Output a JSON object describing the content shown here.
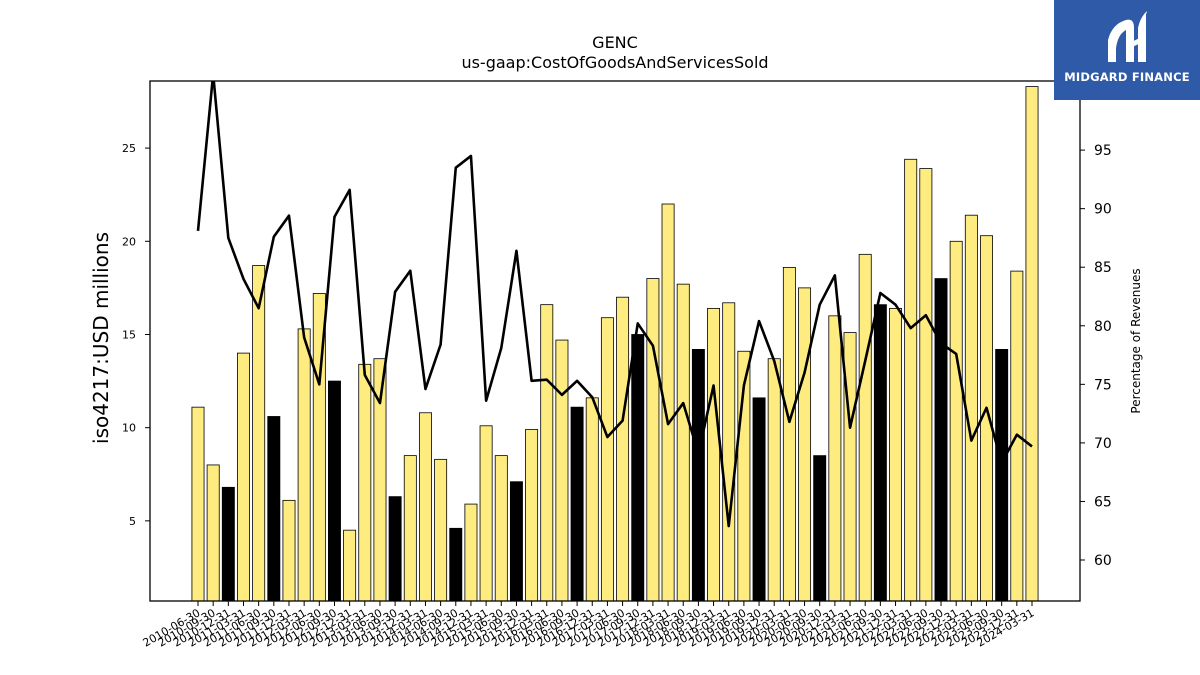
{
  "chart_data": {
    "type": "bar",
    "title": "GENC",
    "subtitle": "us-gaap:CostOfGoodsAndServicesSold",
    "ylabel": "iso4217:USD  millions",
    "y2label": "Percentage of Revenues",
    "ylim": [
      0.7,
      28.6
    ],
    "y2lim": [
      56.5,
      100.9
    ],
    "yticks": [
      5,
      10,
      15,
      20,
      25
    ],
    "y2ticks": [
      60,
      65,
      70,
      75,
      80,
      85,
      90,
      95
    ],
    "grid": false,
    "legend": "none",
    "bar_colors": {
      "quarter": "#ffec80",
      "annual": "#000000",
      "edge": "#000000"
    },
    "line_color": "#000000",
    "categories": [
      "2010-06-30",
      "2010-09-30",
      "2010-12-31",
      "2011-03-31",
      "2011-06-30",
      "2011-09-30",
      "2011-12-31",
      "2012-03-31",
      "2012-06-30",
      "2012-09-30",
      "2012-12-31",
      "2013-03-31",
      "2013-06-30",
      "2013-09-30",
      "2013-12-31",
      "2014-03-31",
      "2014-06-30",
      "2014-09-30",
      "2014-12-31",
      "2015-03-31",
      "2015-06-30",
      "2015-09-30",
      "2015-12-31",
      "2016-03-31",
      "2016-06-30",
      "2016-09-30",
      "2016-12-31",
      "2017-03-31",
      "2017-06-30",
      "2017-09-30",
      "2017-12-31",
      "2018-03-31",
      "2018-06-30",
      "2018-09-30",
      "2018-12-31",
      "2019-03-31",
      "2019-06-30",
      "2019-09-30",
      "2019-12-31",
      "2020-03-31",
      "2020-06-30",
      "2020-09-30",
      "2020-12-31",
      "2021-03-31",
      "2021-06-30",
      "2021-09-30",
      "2021-12-31",
      "2022-03-31",
      "2022-06-30",
      "2022-09-30",
      "2022-12-31",
      "2023-03-31",
      "2023-06-30",
      "2023-09-30",
      "2023-12-31",
      "2024-03-31"
    ],
    "values": [
      11.1,
      8.0,
      6.8,
      14.0,
      18.7,
      10.6,
      6.1,
      15.3,
      17.2,
      12.5,
      4.5,
      13.4,
      13.7,
      6.3,
      8.5,
      10.8,
      8.3,
      4.6,
      5.9,
      10.1,
      8.5,
      7.1,
      9.9,
      16.6,
      14.7,
      11.1,
      11.6,
      15.9,
      17.0,
      15.0,
      18.0,
      22.0,
      17.7,
      14.2,
      16.4,
      16.7,
      14.1,
      11.6,
      13.7,
      18.6,
      17.5,
      8.5,
      16.0,
      15.1,
      19.3,
      16.6,
      16.4,
      24.4,
      23.9,
      18.0,
      20.0,
      21.4,
      20.3,
      14.2,
      18.4,
      28.3
    ],
    "annual": [
      false,
      false,
      true,
      false,
      false,
      true,
      false,
      false,
      false,
      true,
      false,
      false,
      false,
      true,
      false,
      false,
      false,
      true,
      false,
      false,
      false,
      true,
      false,
      false,
      false,
      true,
      false,
      false,
      false,
      true,
      false,
      false,
      false,
      true,
      false,
      false,
      false,
      true,
      false,
      false,
      false,
      true,
      false,
      false,
      false,
      true,
      false,
      false,
      false,
      true,
      false,
      false,
      false,
      true,
      false,
      false
    ],
    "pct_revenues": [
      88.1,
      101.5,
      87.5,
      84.0,
      81.5,
      87.6,
      89.4,
      79.0,
      75.0,
      89.3,
      91.6,
      75.8,
      73.4,
      82.9,
      84.7,
      74.6,
      78.4,
      93.5,
      94.5,
      73.6,
      78.1,
      86.4,
      75.3,
      75.4,
      74.1,
      75.3,
      73.9,
      70.5,
      71.9,
      80.2,
      78.3,
      71.6,
      73.4,
      69.1,
      74.9,
      62.9,
      74.9,
      80.4,
      77.0,
      71.8,
      76.0,
      81.8,
      84.3,
      71.3,
      77.0,
      82.8,
      81.8,
      79.8,
      80.9,
      78.5,
      77.6,
      70.2,
      73.0,
      68.3,
      70.7,
      69.7
    ]
  },
  "logo": {
    "text": "MIDGARD FINANCE",
    "bg": "#2f5aa8"
  }
}
